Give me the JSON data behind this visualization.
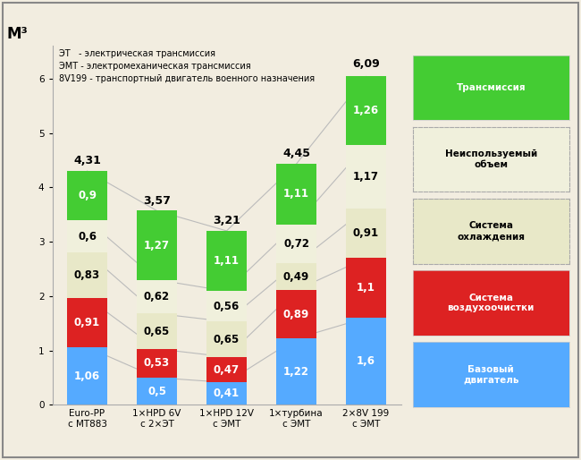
{
  "categories": [
    "Euro-PP\nс МТ883",
    "1×HPD 6V\nс 2×ЭТ",
    "1×HPD 12V\nс ЭМТ",
    "1×турбина\nс ЭМТ",
    "2×8V 199\nс ЭМТ"
  ],
  "base_engine": [
    1.06,
    0.5,
    0.41,
    1.22,
    1.6
  ],
  "air_cleaning": [
    0.91,
    0.53,
    0.47,
    0.89,
    1.1
  ],
  "cooling": [
    0.83,
    0.65,
    0.65,
    0.49,
    0.91
  ],
  "unused": [
    0.6,
    0.62,
    0.56,
    0.72,
    1.17
  ],
  "transmission": [
    0.9,
    1.27,
    1.11,
    1.11,
    1.26
  ],
  "totals": [
    4.31,
    3.57,
    3.21,
    4.45,
    6.09
  ],
  "colors": {
    "base_engine": "#55aaff",
    "air_cleaning": "#dd2222",
    "cooling": "#e8e8c8",
    "unused": "#f0f0dc",
    "transmission": "#44cc33"
  },
  "label_colors": {
    "base_engine": "white",
    "air_cleaning": "white",
    "cooling": "black",
    "unused": "black",
    "transmission": "white"
  },
  "legend_entries": [
    {
      "label": "Трансмиссия",
      "color": "#44cc33",
      "text_color": "white",
      "border": "solid"
    },
    {
      "label": "Неиспользуемый\nобъем",
      "color": "#f0f0dc",
      "text_color": "black",
      "border": "dashed"
    },
    {
      "label": "Система\nохлаждения",
      "color": "#e8e8c8",
      "text_color": "black",
      "border": "dashed"
    },
    {
      "label": "Система\nвоздухоочистки",
      "color": "#dd2222",
      "text_color": "white",
      "border": "solid"
    },
    {
      "label": "Базовый\nдвигатель",
      "color": "#55aaff",
      "text_color": "white",
      "border": "solid"
    }
  ],
  "annotation": "ЭТ   - электрическая трансмиссия\nЭМТ - электромеханическая трансмиссия\n8V199 - транспортный двигатель военного назначения",
  "ylabel": "М³",
  "ylim": [
    0,
    6.6
  ],
  "yticks": [
    0,
    1,
    2,
    3,
    4,
    5,
    6
  ],
  "background_color": "#f2ede0",
  "border_color": "#999999"
}
